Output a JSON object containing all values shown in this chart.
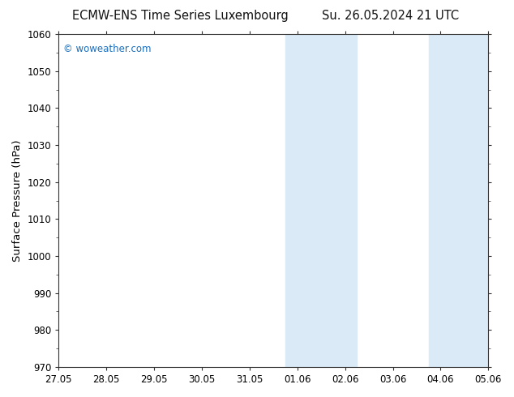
{
  "title_left": "ECMW-ENS Time Series Luxembourg",
  "title_right": "Su. 26.05.2024 21 UTC",
  "ylabel": "Surface Pressure (hPa)",
  "ylim": [
    970,
    1060
  ],
  "yticks": [
    970,
    980,
    990,
    1000,
    1010,
    1020,
    1030,
    1040,
    1050,
    1060
  ],
  "xtick_labels": [
    "27.05",
    "28.05",
    "29.05",
    "30.05",
    "31.05",
    "01.06",
    "02.06",
    "03.06",
    "04.06",
    "05.06"
  ],
  "xtick_positions": [
    0,
    1,
    2,
    3,
    4,
    5,
    6,
    7,
    8,
    9
  ],
  "watermark": "© woweather.com",
  "watermark_color": "#1a6ebd",
  "bg_color": "#ffffff",
  "plot_bg_color": "#ffffff",
  "shaded_bands": [
    {
      "x_start": 4.75,
      "x_end": 6.25
    },
    {
      "x_start": 7.75,
      "x_end": 9.0
    }
  ],
  "shaded_color": "#daeaf7",
  "border_color": "#333333",
  "title_fontsize": 10.5,
  "tick_fontsize": 8.5,
  "ylabel_fontsize": 9.5
}
